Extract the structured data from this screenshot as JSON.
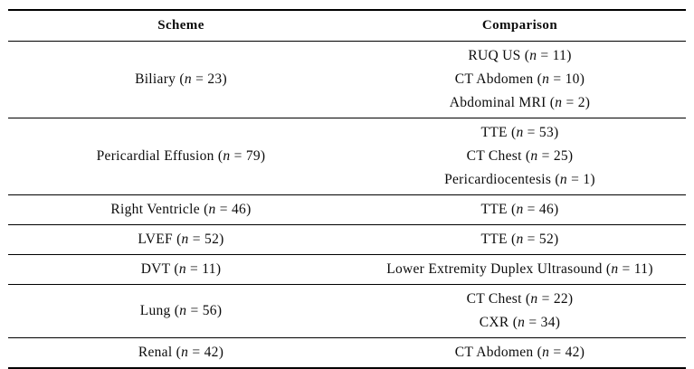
{
  "table": {
    "n_symbol": "n",
    "columns": [
      {
        "label": "Scheme"
      },
      {
        "label": "Comparison"
      }
    ],
    "rows": [
      {
        "scheme": {
          "name": "Biliary",
          "n": "23"
        },
        "comparisons": [
          {
            "name": "RUQ US",
            "n": "11"
          },
          {
            "name": "CT Abdomen",
            "n": "10"
          },
          {
            "name": "Abdominal MRI",
            "n": "2"
          }
        ]
      },
      {
        "scheme": {
          "name": "Pericardial Effusion",
          "n": "79"
        },
        "comparisons": [
          {
            "name": "TTE",
            "n": "53"
          },
          {
            "name": "CT Chest",
            "n": "25"
          },
          {
            "name": "Pericardiocentesis",
            "n": "1"
          }
        ]
      },
      {
        "scheme": {
          "name": "Right Ventricle",
          "n": "46"
        },
        "comparisons": [
          {
            "name": "TTE",
            "n": "46"
          }
        ]
      },
      {
        "scheme": {
          "name": "LVEF",
          "n": "52"
        },
        "comparisons": [
          {
            "name": "TTE",
            "n": "52"
          }
        ]
      },
      {
        "scheme": {
          "name": "DVT",
          "n": "11"
        },
        "comparisons": [
          {
            "name": "Lower Extremity Duplex Ultrasound",
            "n": "11"
          }
        ]
      },
      {
        "scheme": {
          "name": "Lung",
          "n": "56"
        },
        "comparisons": [
          {
            "name": "CT Chest",
            "n": "22"
          },
          {
            "name": "CXR",
            "n": "34"
          }
        ]
      },
      {
        "scheme": {
          "name": "Renal",
          "n": "42"
        },
        "comparisons": [
          {
            "name": "CT Abdomen",
            "n": "42"
          }
        ]
      }
    ],
    "colors": {
      "text": "#0c0c0c",
      "rule": "#000000",
      "background": "#ffffff"
    }
  }
}
